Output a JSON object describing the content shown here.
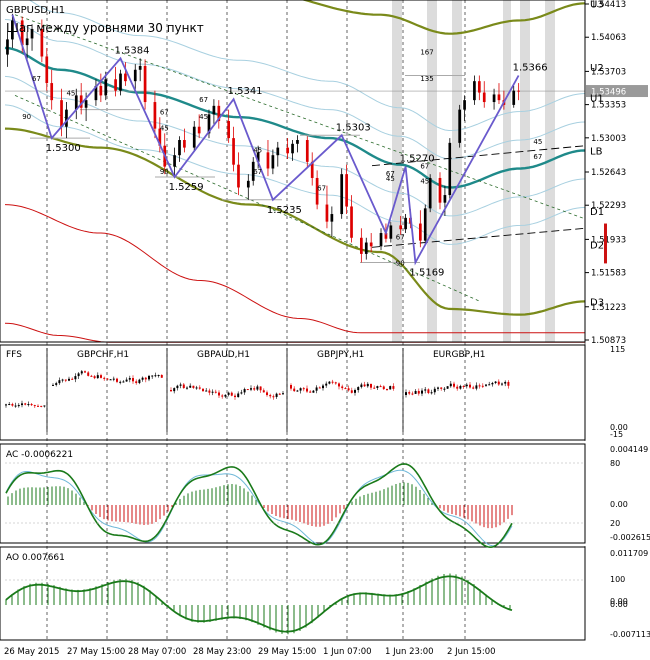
{
  "chart_data": {
    "type": "line",
    "symbol": "GBPUSD,H1",
    "title": "Шаг между уровнями 30 пункт",
    "price_axis": [
      "1.54413",
      "1.54063",
      "1.53703",
      "1.53353",
      "1.53003",
      "1.52643",
      "1.52293",
      "1.51933",
      "1.51583",
      "1.51223",
      "1.50873"
    ],
    "current_price": "1.53496",
    "levels": [
      {
        "name": "U3",
        "price": 1.5442
      },
      {
        "name": "U2",
        "price": 1.5375
      },
      {
        "name": "U1",
        "price": 1.5343
      },
      {
        "name": "LB",
        "price": 1.5287
      },
      {
        "name": "D1",
        "price": 1.5223
      },
      {
        "name": "D2",
        "price": 1.5188
      },
      {
        "name": "D3",
        "price": 1.5128
      }
    ],
    "pivots": [
      {
        "i": 1,
        "price": 1.543,
        "label": ""
      },
      {
        "i": 9,
        "price": 1.53,
        "label": "1.5300"
      },
      {
        "i": 23,
        "price": 1.5384,
        "label": "1.5384"
      },
      {
        "i": 33,
        "price": 1.5259,
        "label": "1.5259"
      },
      {
        "i": 45,
        "price": 1.5341,
        "label": "1.5341"
      },
      {
        "i": 53,
        "price": 1.5235,
        "label": "1.5235"
      },
      {
        "i": 67,
        "price": 1.5303,
        "label": "1.5303"
      },
      {
        "i": 76,
        "price": 1.52,
        "label": ""
      },
      {
        "i": 79,
        "price": 1.527,
        "label": "1.5270"
      },
      {
        "i": 81,
        "price": 1.5169,
        "label": "1.5169"
      },
      {
        "i": 102,
        "price": 1.5366,
        "label": "1.5366"
      }
    ],
    "fib_labels": [
      {
        "i": 5,
        "price": 1.536,
        "label": "67"
      },
      {
        "i": 12,
        "price": 1.5345,
        "label": "45"
      },
      {
        "i": 3,
        "price": 1.532,
        "label": "90"
      },
      {
        "i": 30,
        "price": 1.5325,
        "label": "67"
      },
      {
        "i": 30,
        "price": 1.5308,
        "label": "45"
      },
      {
        "i": 30,
        "price": 1.5262,
        "label": "90"
      },
      {
        "i": 38,
        "price": 1.5338,
        "label": "67"
      },
      {
        "i": 38,
        "price": 1.532,
        "label": "45"
      },
      {
        "i": 49,
        "price": 1.5285,
        "label": "45"
      },
      {
        "i": 49,
        "price": 1.5262,
        "label": "67"
      },
      {
        "i": 62,
        "price": 1.5245,
        "label": "67"
      },
      {
        "i": 76,
        "price": 1.526,
        "label": "67"
      },
      {
        "i": 76,
        "price": 1.5255,
        "label": "45"
      },
      {
        "i": 82,
        "price": 1.5268,
        "label": "67"
      },
      {
        "i": 82,
        "price": 1.5252,
        "label": "45"
      },
      {
        "i": 77,
        "price": 1.5193,
        "label": "67"
      },
      {
        "i": 77,
        "price": 1.5166,
        "label": "90"
      },
      {
        "i": 82,
        "price": 1.5388,
        "label": "167"
      },
      {
        "i": 82,
        "price": 1.536,
        "label": "135"
      },
      {
        "i": 105,
        "price": 1.5278,
        "label": "67"
      },
      {
        "i": 105,
        "price": 1.5294,
        "label": "45"
      }
    ],
    "time_labels": [
      "26 May 2015",
      "27 May 15:00",
      "28 May 07:00",
      "28 May 23:00",
      "29 May 15:00",
      "1 Jun 07:00",
      "1 Jun 23:00",
      "2 Jun 15:00"
    ],
    "time_label_bars": [
      0,
      16,
      32,
      48,
      64,
      80,
      96,
      112
    ],
    "ohlc": [
      [
        1.5388,
        1.5412,
        1.5375,
        1.5404
      ],
      [
        1.5404,
        1.5431,
        1.5395,
        1.5424
      ],
      [
        1.5424,
        1.5428,
        1.539,
        1.5398
      ],
      [
        1.5398,
        1.5412,
        1.5382,
        1.5405
      ],
      [
        1.5405,
        1.542,
        1.5392,
        1.5415
      ],
      [
        1.5415,
        1.5425,
        1.538,
        1.5386
      ],
      [
        1.5386,
        1.5395,
        1.535,
        1.5358
      ],
      [
        1.5358,
        1.5372,
        1.533,
        1.534
      ],
      [
        1.534,
        1.5352,
        1.5302,
        1.5312
      ],
      [
        1.5312,
        1.5338,
        1.53,
        1.533
      ],
      [
        1.533,
        1.5352,
        1.532,
        1.5345
      ],
      [
        1.5345,
        1.5358,
        1.5325,
        1.5332
      ],
      [
        1.5332,
        1.5348,
        1.5318,
        1.534
      ],
      [
        1.534,
        1.5362,
        1.5334,
        1.5355
      ],
      [
        1.5355,
        1.5368,
        1.5338,
        1.5345
      ],
      [
        1.5345,
        1.537,
        1.534,
        1.5362
      ],
      [
        1.5362,
        1.5375,
        1.5344,
        1.535
      ],
      [
        1.535,
        1.5372,
        1.5345,
        1.5368
      ],
      [
        1.5368,
        1.538,
        1.5355,
        1.536
      ],
      [
        1.536,
        1.5378,
        1.5348,
        1.5372
      ],
      [
        1.5372,
        1.5384,
        1.536,
        1.5376
      ],
      [
        1.5376,
        1.5383,
        1.533,
        1.5338
      ],
      [
        1.5338,
        1.535,
        1.53,
        1.531
      ],
      [
        1.531,
        1.5322,
        1.5285,
        1.5292
      ],
      [
        1.5292,
        1.5305,
        1.5262,
        1.527
      ],
      [
        1.527,
        1.529,
        1.5259,
        1.5282
      ],
      [
        1.5282,
        1.5302,
        1.5275,
        1.5298
      ],
      [
        1.5298,
        1.531,
        1.5285,
        1.529
      ],
      [
        1.529,
        1.5318,
        1.5286,
        1.5312
      ],
      [
        1.5312,
        1.5325,
        1.53,
        1.5305
      ],
      [
        1.5305,
        1.533,
        1.53,
        1.5325
      ],
      [
        1.5325,
        1.5341,
        1.5315,
        1.5334
      ],
      [
        1.5334,
        1.534,
        1.531,
        1.5318
      ],
      [
        1.5318,
        1.533,
        1.5295,
        1.53
      ],
      [
        1.53,
        1.5312,
        1.5265,
        1.5272
      ],
      [
        1.5272,
        1.5285,
        1.524,
        1.5248
      ],
      [
        1.5248,
        1.5262,
        1.5235,
        1.5255
      ],
      [
        1.5255,
        1.528,
        1.525,
        1.5275
      ],
      [
        1.5275,
        1.5292,
        1.5268,
        1.5285
      ],
      [
        1.5285,
        1.5298,
        1.526,
        1.5268
      ],
      [
        1.5268,
        1.5288,
        1.5262,
        1.5282
      ],
      [
        1.5282,
        1.5296,
        1.527,
        1.529
      ],
      [
        1.529,
        1.53,
        1.5278,
        1.5284
      ],
      [
        1.5284,
        1.5298,
        1.5276,
        1.5294
      ],
      [
        1.5294,
        1.5303,
        1.5285,
        1.5298
      ],
      [
        1.5298,
        1.5302,
        1.527,
        1.5275
      ],
      [
        1.5275,
        1.5285,
        1.525,
        1.5258
      ],
      [
        1.5258,
        1.5266,
        1.5225,
        1.523
      ],
      [
        1.523,
        1.525,
        1.5205,
        1.5212
      ],
      [
        1.5212,
        1.5228,
        1.5196,
        1.522
      ],
      [
        1.522,
        1.5268,
        1.5215,
        1.5262
      ],
      [
        1.5262,
        1.5272,
        1.522,
        1.5228
      ],
      [
        1.5228,
        1.524,
        1.519,
        1.5195
      ],
      [
        1.5195,
        1.5205,
        1.5169,
        1.5178
      ],
      [
        1.5178,
        1.5195,
        1.5172,
        1.519
      ],
      [
        1.519,
        1.52,
        1.518,
        1.5186
      ],
      [
        1.5186,
        1.5205,
        1.5182,
        1.52
      ],
      [
        1.52,
        1.521,
        1.519,
        1.5194
      ],
      [
        1.5194,
        1.5212,
        1.519,
        1.5208
      ],
      [
        1.5208,
        1.5218,
        1.5198,
        1.5204
      ],
      [
        1.5204,
        1.522,
        1.52,
        1.5216
      ],
      [
        1.5216,
        1.5225,
        1.5205,
        1.521
      ],
      [
        1.521,
        1.5224,
        1.5185,
        1.5192
      ],
      [
        1.5192,
        1.523,
        1.5188,
        1.5226
      ],
      [
        1.5226,
        1.5262,
        1.5222,
        1.5258
      ],
      [
        1.5258,
        1.5264,
        1.5225,
        1.5232
      ],
      [
        1.5232,
        1.525,
        1.5218,
        1.524
      ],
      [
        1.524,
        1.53,
        1.5236,
        1.5295
      ],
      [
        1.5295,
        1.5335,
        1.529,
        1.533
      ],
      [
        1.533,
        1.5345,
        1.5318,
        1.534
      ],
      [
        1.534,
        1.5366,
        1.5335,
        1.536
      ],
      [
        1.536,
        1.5366,
        1.534,
        1.5348
      ],
      [
        1.5348,
        1.536,
        1.5332,
        1.5338
      ],
      [
        1.5338,
        1.5352,
        1.533,
        1.5346
      ],
      [
        1.5346,
        1.5358,
        1.5336,
        1.534
      ],
      [
        1.534,
        1.535,
        1.533,
        1.5335
      ],
      [
        1.5335,
        1.5355,
        1.5332,
        1.535
      ],
      [
        1.535,
        1.5358,
        1.534,
        1.5349
      ]
    ],
    "panels": [
      {
        "name": "FFS",
        "pairs": [
          "GBPCHF,H1",
          "GBPAUD,H1",
          "GBPJPY,H1",
          "EURGBP,H1"
        ],
        "axis": [
          "115",
          "0.00",
          "-15"
        ]
      },
      {
        "name": "AC",
        "value": "-0.0006221",
        "axis": [
          "0.004149",
          "80",
          "0.00",
          "20",
          "-0.002615"
        ]
      },
      {
        "name": "AO",
        "value": "0.007661",
        "axis": [
          "0.011709",
          "100",
          "0.00",
          "0.00",
          "-0.007113"
        ]
      }
    ],
    "colors": {
      "candle_up": "#000000",
      "candle_down": "#dd0000",
      "ma": "#1f8a8a",
      "band_outer": "#7a8a1a",
      "band_mid": "#a8d0e0",
      "zigzag": "#6a5acd",
      "lower_red": "#cc1111",
      "ac_main": "#1a7a1a",
      "ac_signal": "#6fb8d8"
    }
  }
}
